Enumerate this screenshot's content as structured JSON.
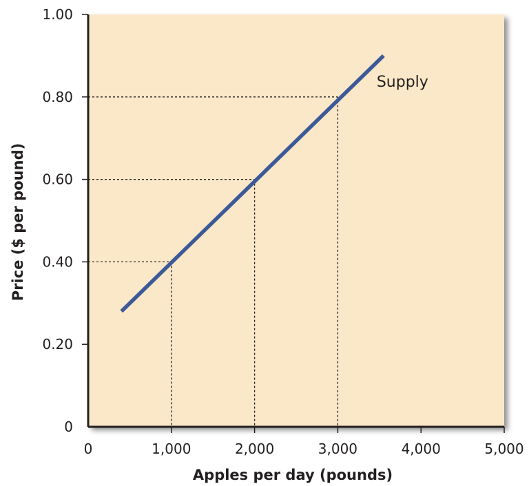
{
  "chart_data": {
    "type": "line",
    "xlabel": "Apples per day (pounds)",
    "ylabel": "Price ($ per pound)",
    "xlim": [
      0,
      5000
    ],
    "ylim": [
      0,
      1.0
    ],
    "x_ticks": [
      0,
      1000,
      2000,
      3000,
      4000,
      5000
    ],
    "x_tick_labels": [
      "0",
      "1,000",
      "2,000",
      "3,000",
      "4,000",
      "5,000"
    ],
    "y_ticks": [
      0,
      0.2,
      0.4,
      0.6,
      0.8,
      1.0
    ],
    "y_tick_labels": [
      "0",
      "0.20",
      "0.40",
      "0.60",
      "0.80",
      "1.00"
    ],
    "grid": false,
    "series": [
      {
        "name": "Supply",
        "x": [
          400,
          3550
        ],
        "y": [
          0.28,
          0.9
        ]
      }
    ],
    "reference_points": [
      {
        "x": 1000,
        "y": 0.4
      },
      {
        "x": 2000,
        "y": 0.6
      },
      {
        "x": 3000,
        "y": 0.8
      }
    ],
    "colors": {
      "plot_background": "#fbe8c8",
      "line": "#3d5a98",
      "axis": "#231f20",
      "reference": "#231f20"
    }
  }
}
